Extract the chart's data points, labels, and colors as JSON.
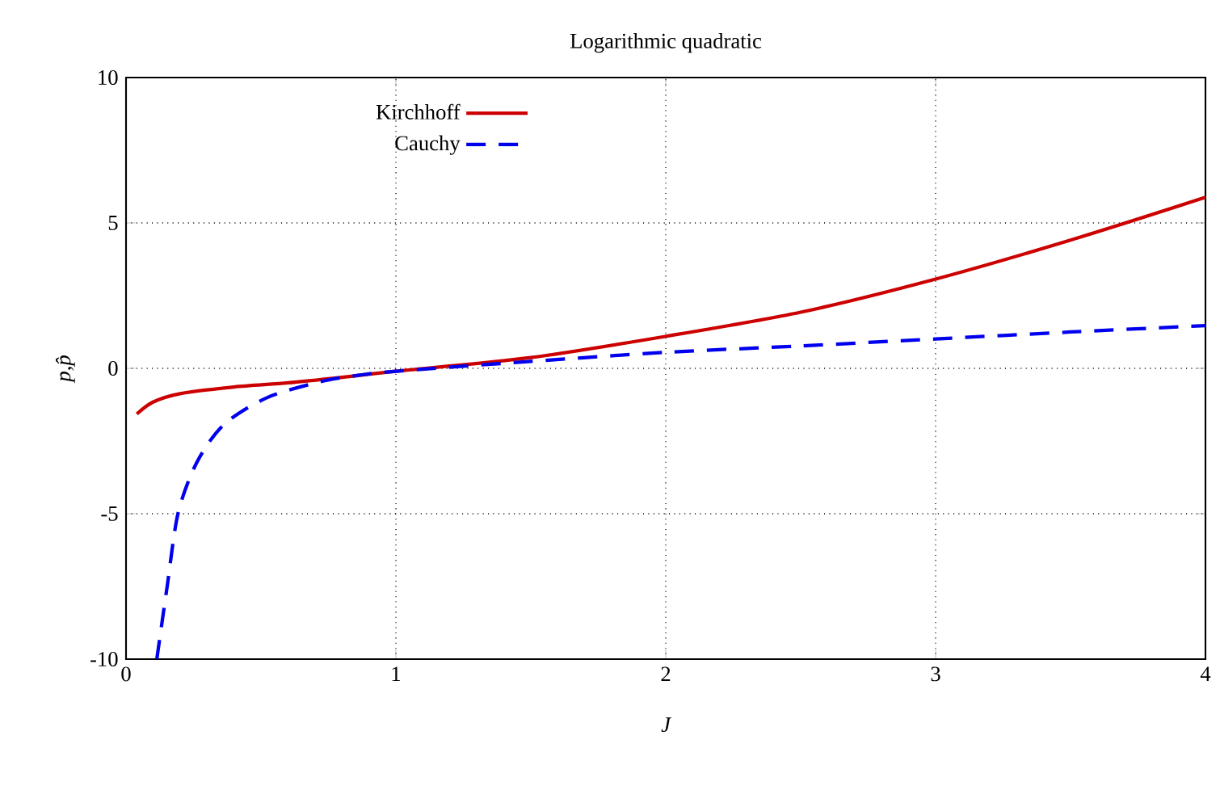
{
  "chart_data": {
    "type": "line",
    "title": "Logarithmic quadratic",
    "xlabel": "J",
    "ylabel": "p,p̂",
    "xlim": [
      0,
      4
    ],
    "ylim": [
      -10,
      10
    ],
    "xticks": [
      0,
      1,
      2,
      3,
      4
    ],
    "yticks": [
      -10,
      -5,
      0,
      5,
      10
    ],
    "grid": true,
    "legend": "top left",
    "series": [
      {
        "name": "Kirchhoff",
        "color": "#cc0000",
        "line_style": "solid",
        "x": [
          0.04,
          0.1,
          0.2,
          0.4,
          0.6,
          0.8,
          1,
          1.5,
          2,
          2.5,
          3,
          3.5,
          4
        ],
        "values": [
          -1.57,
          -1.16,
          -0.87,
          -0.64,
          -0.5,
          -0.31,
          -0.1,
          0.37,
          1.1,
          1.93,
          3.07,
          4.41,
          5.88
        ]
      },
      {
        "name": "Cauchy",
        "color": "#0000ee",
        "line_style": "dashed",
        "x": [
          0.114,
          0.153,
          0.193,
          0.263,
          0.363,
          0.522,
          0.72,
          0.86,
          1,
          1.5,
          2,
          2.5,
          3,
          3.5,
          4
        ],
        "values": [
          -10,
          -7.46,
          -4.97,
          -3.22,
          -1.93,
          -1.01,
          -0.46,
          -0.24,
          -0.1,
          0.24,
          0.55,
          0.77,
          1.01,
          1.25,
          1.47
        ]
      }
    ]
  }
}
